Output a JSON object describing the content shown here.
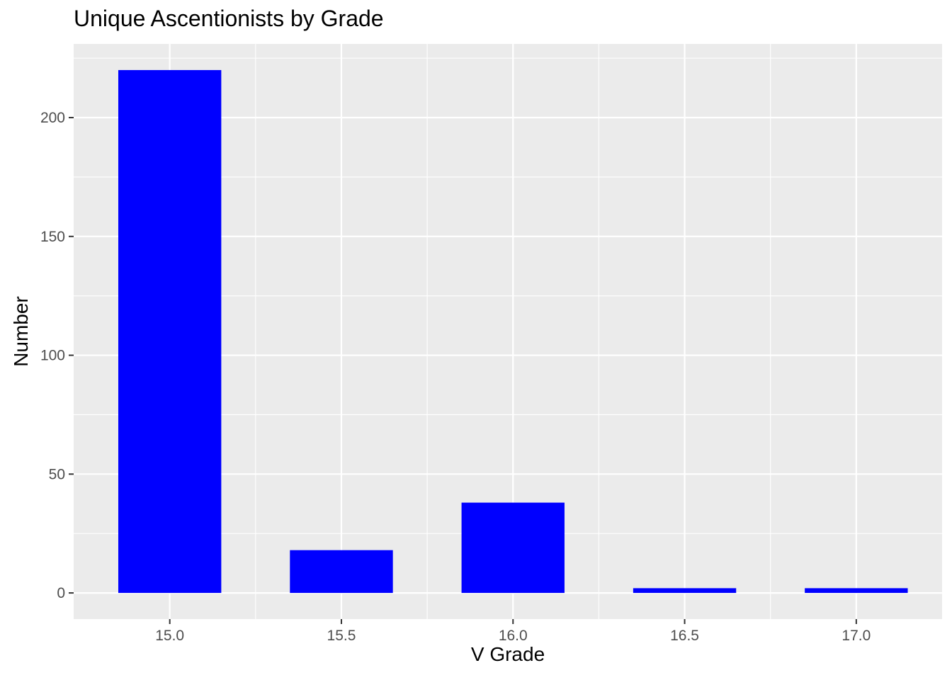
{
  "chart_data": {
    "type": "bar",
    "title": "Unique Ascentionists by Grade",
    "xlabel": "V Grade",
    "ylabel": "Number",
    "x": [
      15.0,
      15.5,
      16.0,
      16.5,
      17.0
    ],
    "values": [
      220,
      18,
      38,
      2,
      2
    ],
    "bar_width": 0.3,
    "xlim": [
      14.72,
      17.25
    ],
    "ylim": [
      -11,
      231
    ],
    "x_ticks": [
      15.0,
      15.5,
      16.0,
      16.5,
      17.0
    ],
    "x_tick_labels": [
      "15.0",
      "15.5",
      "16.0",
      "16.5",
      "17.0"
    ],
    "y_ticks": [
      0,
      50,
      100,
      150,
      200
    ],
    "y_tick_labels": [
      "0",
      "50",
      "100",
      "150",
      "200"
    ],
    "grid": true,
    "colors": {
      "bar": "#0000FF",
      "panel": "#EBEBEB",
      "grid": "#FFFFFF"
    }
  }
}
